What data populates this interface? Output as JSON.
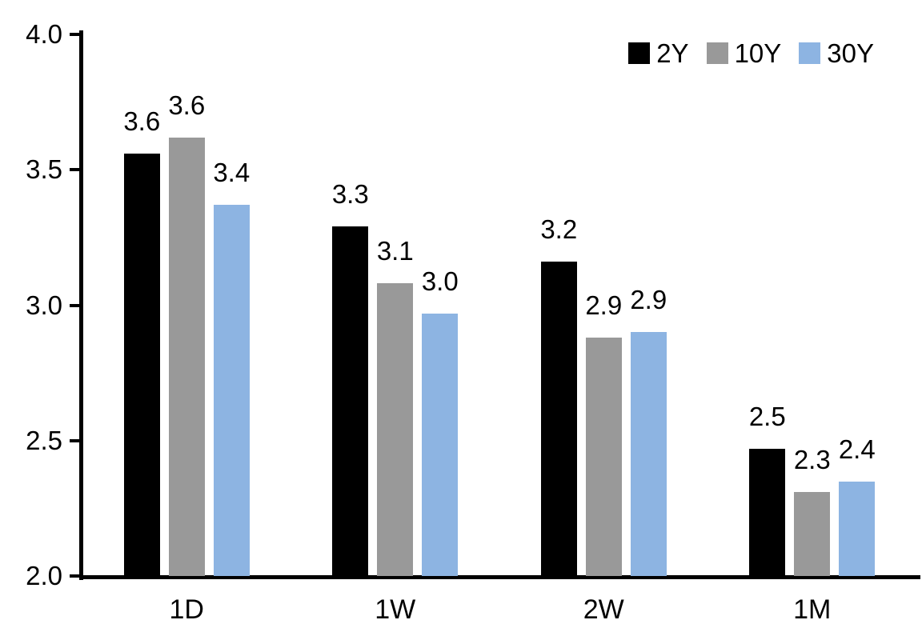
{
  "chart_data": {
    "type": "bar",
    "title": "",
    "categories": [
      "1D",
      "1W",
      "2W",
      "1M"
    ],
    "series": [
      {
        "name": "2Y",
        "color": "#000000",
        "values": [
          3.6,
          3.3,
          3.2,
          2.5
        ],
        "values_precise": [
          3.56,
          3.29,
          3.16,
          2.47
        ],
        "labels": [
          "3.6",
          "3.3",
          "3.2",
          "2.5"
        ]
      },
      {
        "name": "10Y",
        "color": "#999999",
        "values": [
          3.6,
          3.1,
          2.9,
          2.3
        ],
        "values_precise": [
          3.62,
          3.08,
          2.88,
          2.31
        ],
        "labels": [
          "3.6",
          "3.1",
          "2.9",
          "2.3"
        ]
      },
      {
        "name": "30Y",
        "color": "#8DB4E2",
        "values": [
          3.4,
          3.0,
          2.9,
          2.4
        ],
        "values_precise": [
          3.37,
          2.97,
          2.9,
          2.35
        ],
        "labels": [
          "3.4",
          "3.0",
          "2.9",
          "2.4"
        ]
      }
    ],
    "y_axis": {
      "min": 2.0,
      "max": 4.0,
      "tick_values": [
        4.0,
        3.5,
        3.0,
        2.5,
        2.0
      ],
      "tick_labels": [
        "4.0",
        "3.5",
        "3.0",
        "2.5",
        "2.0"
      ]
    },
    "legend": {
      "position": "top-right",
      "entries": [
        "2Y",
        "10Y",
        "30Y"
      ]
    },
    "grid": false,
    "data_labels": true,
    "colors": {
      "axis": "#000000",
      "text": "#000000",
      "background": "#FFFFFF"
    }
  }
}
